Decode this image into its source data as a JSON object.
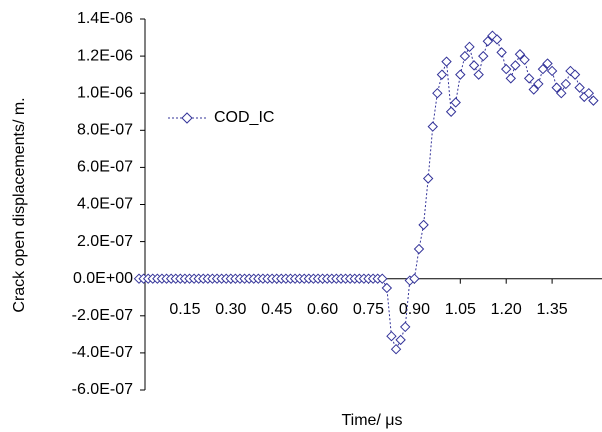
{
  "chart_data": {
    "type": "scatter",
    "x_label": "Time/ μs",
    "y_label": "Crack open displacements/ m.",
    "x": [
      0,
      0.015,
      0.03,
      0.045,
      0.06,
      0.075,
      0.09,
      0.105,
      0.12,
      0.135,
      0.15,
      0.165,
      0.18,
      0.195,
      0.21,
      0.225,
      0.24,
      0.255,
      0.27,
      0.285,
      0.3,
      0.315,
      0.33,
      0.345,
      0.36,
      0.375,
      0.39,
      0.405,
      0.42,
      0.435,
      0.45,
      0.465,
      0.48,
      0.495,
      0.51,
      0.525,
      0.54,
      0.555,
      0.57,
      0.585,
      0.6,
      0.615,
      0.63,
      0.645,
      0.66,
      0.675,
      0.69,
      0.705,
      0.72,
      0.735,
      0.75,
      0.765,
      0.78,
      0.795,
      0.81,
      0.825,
      0.84,
      0.855,
      0.87,
      0.885,
      0.9,
      0.915,
      0.93,
      0.945,
      0.96,
      0.975,
      0.99,
      1.005,
      1.02,
      1.035,
      1.05,
      1.065,
      1.08,
      1.095,
      1.11,
      1.125,
      1.14,
      1.155,
      1.17,
      1.185,
      1.2,
      1.215,
      1.23,
      1.245,
      1.26,
      1.275,
      1.29,
      1.305,
      1.32,
      1.335,
      1.35,
      1.365,
      1.38,
      1.395,
      1.41,
      1.425,
      1.44,
      1.455,
      1.47,
      1.485
    ],
    "series": [
      {
        "name": "COD_IC",
        "color": "#333399",
        "marker": "diamond",
        "line_style": "dashed",
        "values": [
          0,
          0,
          0,
          0,
          0,
          0,
          0,
          0,
          0,
          0,
          0,
          0,
          0,
          0,
          0,
          0,
          0,
          0,
          0,
          0,
          0,
          0,
          0,
          0,
          0,
          0,
          0,
          0,
          0,
          0,
          0,
          0,
          0,
          0,
          0,
          0,
          0,
          0,
          0,
          0,
          0,
          0,
          0,
          0,
          0,
          0,
          0,
          0,
          0,
          0,
          0,
          0,
          0,
          0,
          -5e-08,
          -3.1e-07,
          -3.8e-07,
          -3.3e-07,
          -2.6e-07,
          -1e-08,
          0,
          1.6e-07,
          2.9e-07,
          5.4e-07,
          8.2e-07,
          1e-06,
          1.1e-06,
          1.17e-06,
          9e-07,
          9.5e-07,
          1.1e-06,
          1.2e-06,
          1.25e-06,
          1.15e-06,
          1.1e-06,
          1.2e-06,
          1.28e-06,
          1.31e-06,
          1.29e-06,
          1.22e-06,
          1.13e-06,
          1.08e-06,
          1.15e-06,
          1.21e-06,
          1.18e-06,
          1.08e-06,
          1.02e-06,
          1.05e-06,
          1.13e-06,
          1.16e-06,
          1.12e-06,
          1.03e-06,
          1e-06,
          1.05e-06,
          1.12e-06,
          1.1e-06,
          1.03e-06,
          9.8e-07,
          1e-06,
          9.6e-07
        ]
      }
    ],
    "xlim": [
      0,
      1.5
    ],
    "ylim": [
      -6e-07,
      1.4e-06
    ],
    "xticks": [
      0.15,
      {
        "value": 0.3,
        "label": "0.30"
      },
      0.45,
      {
        "value": 0.6,
        "label": "0.60"
      },
      0.75,
      {
        "value": 0.9,
        "label": "0.90"
      },
      1.05,
      {
        "value": 1.2,
        "label": "1.20"
      },
      1.35
    ],
    "yticks": [
      {
        "value": -6e-07,
        "label": "-6.0E-07"
      },
      {
        "value": -4e-07,
        "label": "-4.0E-07"
      },
      {
        "value": -2e-07,
        "label": "-2.0E-07"
      },
      {
        "value": 0,
        "label": "0.0E+00"
      },
      {
        "value": 2e-07,
        "label": "2.0E-07"
      },
      {
        "value": 4e-07,
        "label": "4.0E-07"
      },
      {
        "value": 6e-07,
        "label": "6.0E-07"
      },
      {
        "value": 8e-07,
        "label": "8.0E-07"
      },
      {
        "value": 1e-06,
        "label": "1.0E-06"
      },
      {
        "value": 1.2e-06,
        "label": "1.2E-06"
      },
      {
        "value": 1.4e-06,
        "label": "1.4E-06"
      }
    ],
    "legend": "left"
  }
}
